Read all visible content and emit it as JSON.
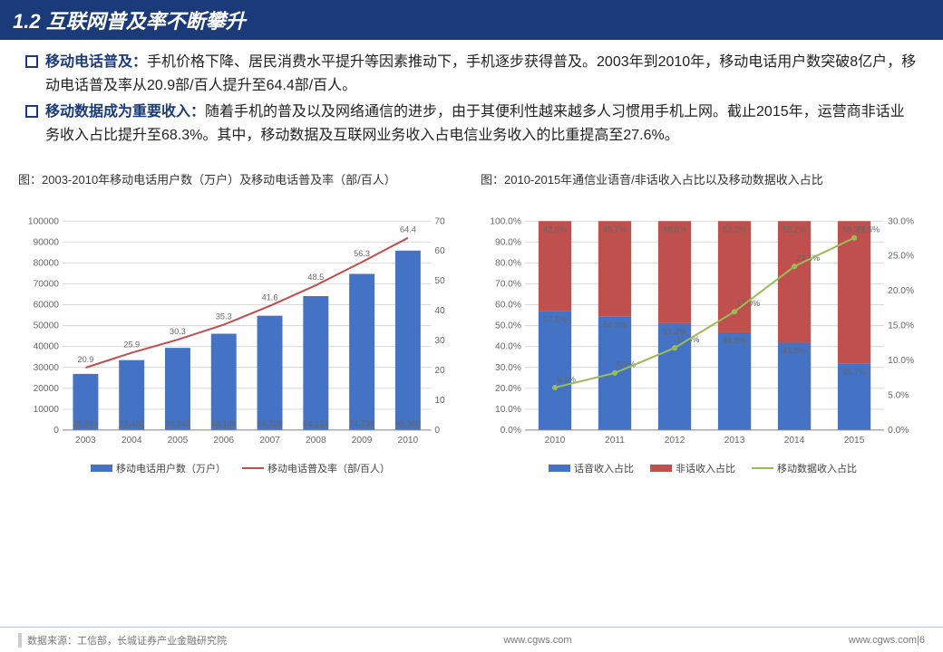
{
  "title": "1.2 互联网普及率不断攀升",
  "bullets": [
    {
      "lead": "移动电话普及：",
      "text": "手机价格下降、居民消费水平提升等因素推动下，手机逐步获得普及。2003年到2010年，移动电话用户数突破8亿户，移动电话普及率从20.9部/百人提升至64.4部/百人。"
    },
    {
      "lead": "移动数据成为重要收入：",
      "text": "随着手机的普及以及网络通信的进步，由于其便利性越来越多人习惯用手机上网。截止2015年，运营商非话业务收入占比提升至68.3%。其中，移动数据及互联网业务收入占电信业务收入的比重提高至27.6%。"
    }
  ],
  "chart1": {
    "type": "bar+line",
    "title": "图：2003-2010年移动电话用户数（万户）及移动电话普及率（部/百人）",
    "categories": [
      "2003",
      "2004",
      "2005",
      "2006",
      "2007",
      "2008",
      "2009",
      "2010"
    ],
    "bar_values": [
      26869,
      33482,
      39343,
      46108,
      54729,
      64123,
      74738,
      85900
    ],
    "bar_labels": [
      "26,869",
      "33,482",
      "39,343",
      "46,108",
      "54,729",
      "64,123",
      "74,738",
      "85,900"
    ],
    "bar_color": "#4472c4",
    "line_values": [
      20.9,
      25.9,
      30.3,
      35.3,
      41.6,
      48.5,
      56.3,
      64.4
    ],
    "line_color": "#c0504d",
    "y1_max": 100000,
    "y1_step": 10000,
    "y2_max": 70,
    "y2_step": 10,
    "legend": [
      "移动电话用户数（万户）",
      "移动电话普及率（部/百人）"
    ],
    "grid_color": "#d9d9d9",
    "label_fontsize": 9
  },
  "chart2": {
    "type": "stacked-bar+line",
    "title": "图：2010-2015年通信业语音/非话收入占比以及移动数据收入占比",
    "categories": [
      "2010",
      "2011",
      "2012",
      "2013",
      "2014",
      "2015"
    ],
    "voice_pct": [
      57.1,
      54.3,
      51.2,
      46.8,
      41.8,
      31.7
    ],
    "nonvoice_pct": [
      42.9,
      45.7,
      48.8,
      53.2,
      58.2,
      68.3
    ],
    "mobile_data_pct": [
      6.1,
      8.2,
      11.8,
      17.0,
      23.5,
      27.6
    ],
    "voice_color": "#4472c4",
    "nonvoice_color": "#c0504d",
    "line_color": "#9bbb59",
    "y1_max": 100,
    "y1_step": 10,
    "y2_max": 30,
    "y2_step": 5,
    "legend": [
      "话音收入占比",
      "非话收入占比",
      "移动数据收入占比"
    ],
    "grid_color": "#d9d9d9",
    "label_fontsize": 9
  },
  "footer": {
    "source": "数据来源：工信部，长城证券产业金融研究院",
    "center": "www.cgws.com",
    "right": "www.cgws.com|6"
  },
  "colors": {
    "header_bg": "#1a3a7a",
    "accent": "#1a3a7a"
  }
}
